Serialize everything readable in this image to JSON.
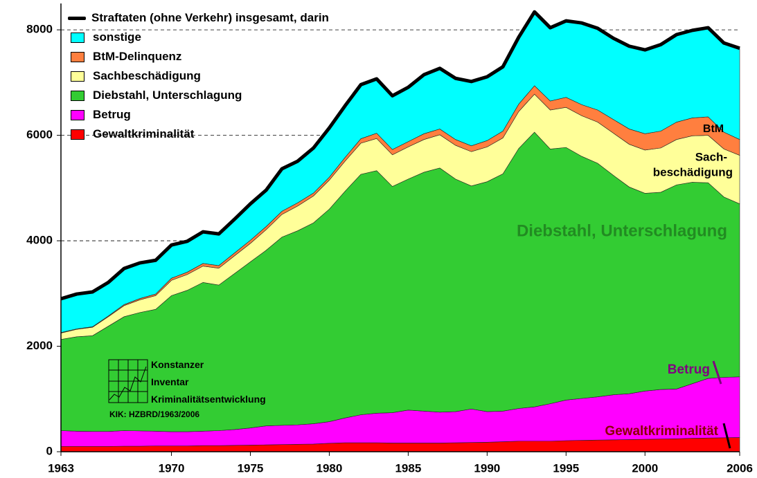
{
  "chart_data": {
    "type": "stacked_area",
    "x": [
      1963,
      1964,
      1965,
      1966,
      1967,
      1968,
      1969,
      1970,
      1971,
      1972,
      1973,
      1974,
      1975,
      1976,
      1977,
      1978,
      1979,
      1980,
      1981,
      1982,
      1983,
      1984,
      1985,
      1986,
      1987,
      1988,
      1989,
      1990,
      1991,
      1992,
      1993,
      1994,
      1995,
      1996,
      1997,
      1998,
      1999,
      2000,
      2001,
      2002,
      2003,
      2004,
      2005,
      2006
    ],
    "xlim": [
      1963,
      2006
    ],
    "xticks": [
      1963,
      1970,
      1975,
      1980,
      1985,
      1990,
      1995,
      2000,
      2006
    ],
    "ylim": [
      0,
      8500
    ],
    "yticks": [
      0,
      2000,
      4000,
      6000,
      8000
    ],
    "grid": true,
    "series": [
      {
        "name": "Straftaten (ohne Verkehr) insgesamt, darin",
        "type": "line",
        "color": "#000000",
        "values": [
          2900,
          2990,
          3030,
          3210,
          3475,
          3580,
          3630,
          3920,
          3990,
          4170,
          4130,
          4410,
          4700,
          4960,
          5365,
          5510,
          5760,
          6140,
          6560,
          6960,
          7070,
          6750,
          6910,
          7150,
          7270,
          7080,
          7020,
          7110,
          7300,
          7860,
          8340,
          8040,
          8170,
          8130,
          8030,
          7840,
          7690,
          7620,
          7720,
          7910,
          7990,
          8040,
          7750,
          7650
        ]
      },
      {
        "name": "sonstige",
        "type": "area",
        "color": "#00ffff",
        "values": [
          640,
          660,
          660,
          635,
          685,
          675,
          640,
          630,
          585,
          600,
          600,
          640,
          690,
          690,
          805,
          790,
          855,
          935,
          980,
          1025,
          1030,
          1020,
          1030,
          1120,
          1150,
          1160,
          1220,
          1210,
          1220,
          1270,
          1400,
          1390,
          1450,
          1550,
          1550,
          1540,
          1570,
          1590,
          1640,
          1660,
          1660,
          1690,
          1690,
          1730
        ]
      },
      {
        "name": "BtM-Delinquenz",
        "type": "area",
        "color": "#ff7f3f",
        "values": [
          10,
          10,
          10,
          15,
          20,
          25,
          30,
          40,
          45,
          50,
          50,
          55,
          60,
          60,
          60,
          60,
          55,
          55,
          70,
          85,
          100,
          100,
          100,
          110,
          110,
          110,
          110,
          120,
          130,
          140,
          160,
          170,
          190,
          210,
          230,
          260,
          290,
          310,
          320,
          330,
          340,
          350,
          320,
          300
        ]
      },
      {
        "name": "Sachbeschädigung",
        "type": "area",
        "color": "#ffff99",
        "values": [
          120,
          140,
          160,
          180,
          210,
          240,
          260,
          290,
          300,
          310,
          320,
          335,
          350,
          390,
          430,
          470,
          510,
          550,
          570,
          590,
          610,
          600,
          610,
          620,
          630,
          640,
          650,
          660,
          680,
          700,
          720,
          740,
          760,
          770,
          780,
          800,
          810,
          820,
          840,
          860,
          880,
          900,
          910,
          920
        ]
      },
      {
        "name": "Diebstahl, Unterschlagung",
        "type": "area",
        "color": "#33cc33",
        "values": [
          1730,
          1790,
          1815,
          1995,
          2160,
          2245,
          2310,
          2580,
          2680,
          2820,
          2760,
          2960,
          3150,
          3330,
          3570,
          3680,
          3810,
          4030,
          4300,
          4560,
          4600,
          4290,
          4380,
          4530,
          4630,
          4410,
          4230,
          4360,
          4500,
          4930,
          5210,
          4830,
          4790,
          4590,
          4430,
          4160,
          3920,
          3750,
          3740,
          3870,
          3820,
          3710,
          3420,
          3280
        ]
      },
      {
        "name": "Betrug",
        "type": "area",
        "color": "#ff00ff",
        "values": [
          300,
          290,
          285,
          285,
          295,
          290,
          280,
          270,
          270,
          275,
          285,
          300,
          325,
          360,
          365,
          370,
          385,
          410,
          470,
          530,
          560,
          575,
          625,
          605,
          585,
          590,
          635,
          580,
          580,
          620,
          650,
          710,
          770,
          795,
          820,
          855,
          870,
          915,
          940,
          945,
          1035,
          1130,
          1145,
          1150
        ]
      },
      {
        "name": "Gewaltkriminalität",
        "type": "area",
        "color": "#ff0000",
        "values": [
          100,
          100,
          100,
          100,
          105,
          105,
          110,
          110,
          110,
          115,
          115,
          120,
          125,
          130,
          135,
          140,
          145,
          160,
          170,
          170,
          170,
          165,
          165,
          165,
          165,
          170,
          175,
          180,
          190,
          200,
          200,
          200,
          210,
          215,
          220,
          225,
          230,
          235,
          240,
          245,
          255,
          260,
          265,
          270
        ]
      }
    ],
    "annotations": [
      "BtM",
      "Sach-",
      "beschädigung",
      "Diebstahl, Unterschlagung",
      "Betrug",
      "Gewaltkriminalität"
    ],
    "logo": {
      "lines": [
        "Konstanzer",
        "Inventar",
        "Kriminalitätsentwicklung"
      ],
      "source": "KIK: HZBRD/1963/2006"
    }
  }
}
